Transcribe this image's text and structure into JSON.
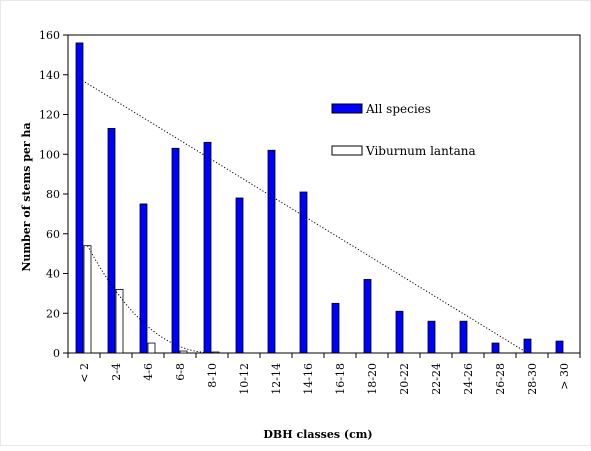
{
  "chart_data": {
    "type": "bar",
    "title": "",
    "xlabel": "DBH classes (cm)",
    "ylabel": "Number of stems per ha",
    "ylim": [
      0,
      160
    ],
    "yticks": [
      0,
      20,
      40,
      60,
      80,
      100,
      120,
      140,
      160
    ],
    "grid": false,
    "legend_position": "right",
    "categories": [
      "< 2",
      "2-4",
      "4-6",
      "6-8",
      "8-10",
      "10-12",
      "12-14",
      "14-16",
      "16-18",
      "18-20",
      "20-22",
      "22-24",
      "24-26",
      "26-28",
      "28-30",
      "> 30"
    ],
    "series": [
      {
        "name": "All species",
        "color": "#0000ff",
        "values": [
          156,
          113,
          75,
          103,
          106,
          78,
          102,
          81,
          25,
          37,
          21,
          16,
          16,
          5,
          7,
          6
        ]
      },
      {
        "name": "Viburnum lantana",
        "color": "#ffffff",
        "values": [
          54,
          32,
          5,
          1,
          0.5,
          0,
          0,
          0,
          0,
          0,
          0,
          0,
          0,
          0,
          0,
          0
        ]
      }
    ],
    "trendlines": [
      {
        "series": "All species",
        "kind": "linear",
        "style": "dotted",
        "y_start": 138,
        "y_end": 0,
        "x_start": "< 2",
        "x_end": "28-30"
      },
      {
        "series": "Viburnum lantana",
        "kind": "curve",
        "style": "dotted",
        "y_start": 54,
        "y_end": 0,
        "x_start": "< 2",
        "x_end": "8-10"
      }
    ]
  }
}
